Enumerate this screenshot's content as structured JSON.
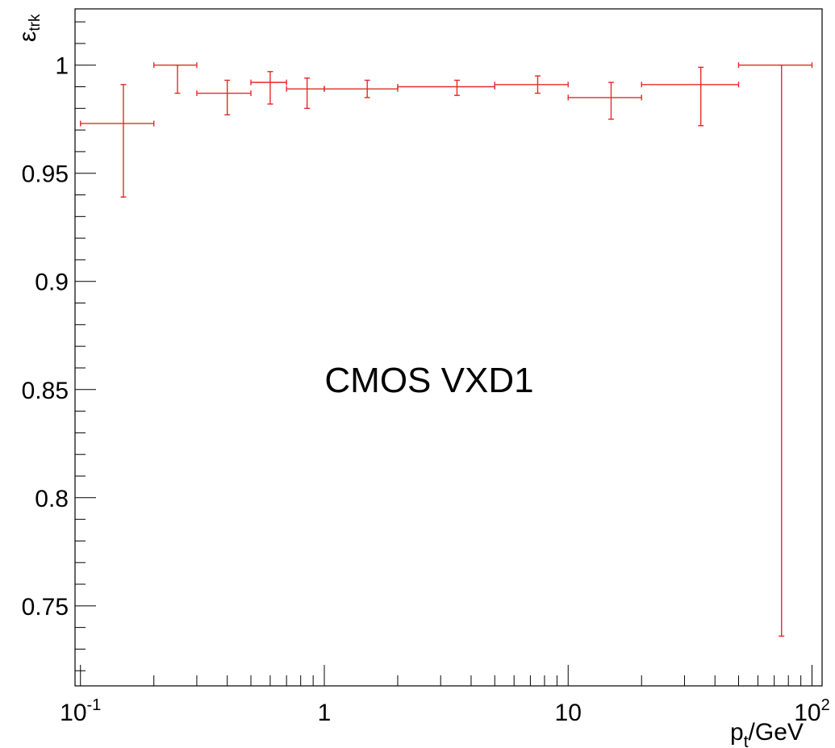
{
  "chart_data": {
    "type": "scatter",
    "title": "",
    "xlabel": "p_t/GeV",
    "ylabel": "ε_trk",
    "xscale": "log",
    "xlim": [
      0.095,
      110
    ],
    "ylim": [
      0.713,
      1.026
    ],
    "grid": false,
    "annotation": "CMOS VXD1",
    "x_tick_labels": [
      {
        "value": 0.1,
        "base": "10",
        "exp": "-1"
      },
      {
        "value": 1,
        "base": "1",
        "exp": ""
      },
      {
        "value": 10,
        "base": "10",
        "exp": ""
      },
      {
        "value": 100,
        "base": "10",
        "exp": "2"
      }
    ],
    "y_tick_labels": [
      {
        "value": 1.0,
        "label": "1"
      },
      {
        "value": 0.95,
        "label": "0.95"
      },
      {
        "value": 0.9,
        "label": "0.9"
      },
      {
        "value": 0.85,
        "label": "0.85"
      },
      {
        "value": 0.8,
        "label": "0.8"
      },
      {
        "value": 0.75,
        "label": "0.75"
      }
    ],
    "series": [
      {
        "color": "#e8282b",
        "points": [
          {
            "x": 0.15,
            "xlow": 0.1,
            "xhigh": 0.2,
            "y": 0.973,
            "ylow": 0.939,
            "yhigh": 0.991
          },
          {
            "x": 0.25,
            "xlow": 0.2,
            "xhigh": 0.3,
            "y": 1.0,
            "ylow": 0.987,
            "yhigh": 1.0
          },
          {
            "x": 0.4,
            "xlow": 0.3,
            "xhigh": 0.5,
            "y": 0.987,
            "ylow": 0.977,
            "yhigh": 0.993
          },
          {
            "x": 0.6,
            "xlow": 0.5,
            "xhigh": 0.7,
            "y": 0.992,
            "ylow": 0.982,
            "yhigh": 0.997
          },
          {
            "x": 0.85,
            "xlow": 0.7,
            "xhigh": 1.0,
            "y": 0.989,
            "ylow": 0.98,
            "yhigh": 0.994
          },
          {
            "x": 1.5,
            "xlow": 1.0,
            "xhigh": 2.0,
            "y": 0.989,
            "ylow": 0.985,
            "yhigh": 0.993
          },
          {
            "x": 3.5,
            "xlow": 2.0,
            "xhigh": 5.0,
            "y": 0.99,
            "ylow": 0.986,
            "yhigh": 0.993
          },
          {
            "x": 7.5,
            "xlow": 5.0,
            "xhigh": 10.0,
            "y": 0.991,
            "ylow": 0.987,
            "yhigh": 0.995
          },
          {
            "x": 15,
            "xlow": 10.0,
            "xhigh": 20.0,
            "y": 0.985,
            "ylow": 0.975,
            "yhigh": 0.992
          },
          {
            "x": 35,
            "xlow": 20.0,
            "xhigh": 50.0,
            "y": 0.991,
            "ylow": 0.972,
            "yhigh": 0.999
          },
          {
            "x": 75,
            "xlow": 50.0,
            "xhigh": 100.0,
            "y": 1.0,
            "ylow": 0.736,
            "yhigh": 1.0
          }
        ]
      }
    ]
  }
}
